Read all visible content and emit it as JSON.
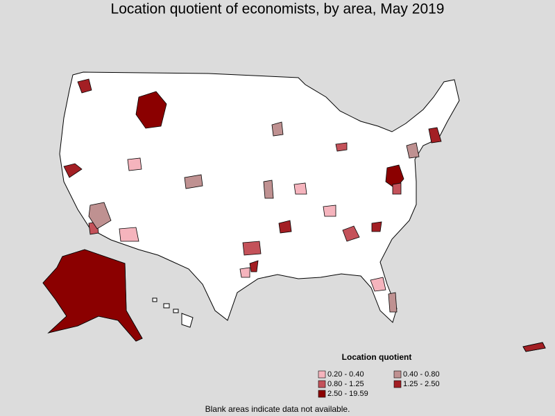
{
  "title": "Location quotient of economists, by area, May 2019",
  "legend": {
    "title": "Location quotient",
    "items": [
      {
        "label": "0.20 - 0.40",
        "color": "#f5b4bd"
      },
      {
        "label": "0.40 - 0.80",
        "color": "#bf9191"
      },
      {
        "label": "0.80 - 1.25",
        "color": "#c4525a"
      },
      {
        "label": "1.25 - 2.50",
        "color": "#a31f24"
      },
      {
        "label": "2.50 - 19.59",
        "color": "#8b0000"
      }
    ]
  },
  "footnote": "Blank areas indicate data not available."
}
